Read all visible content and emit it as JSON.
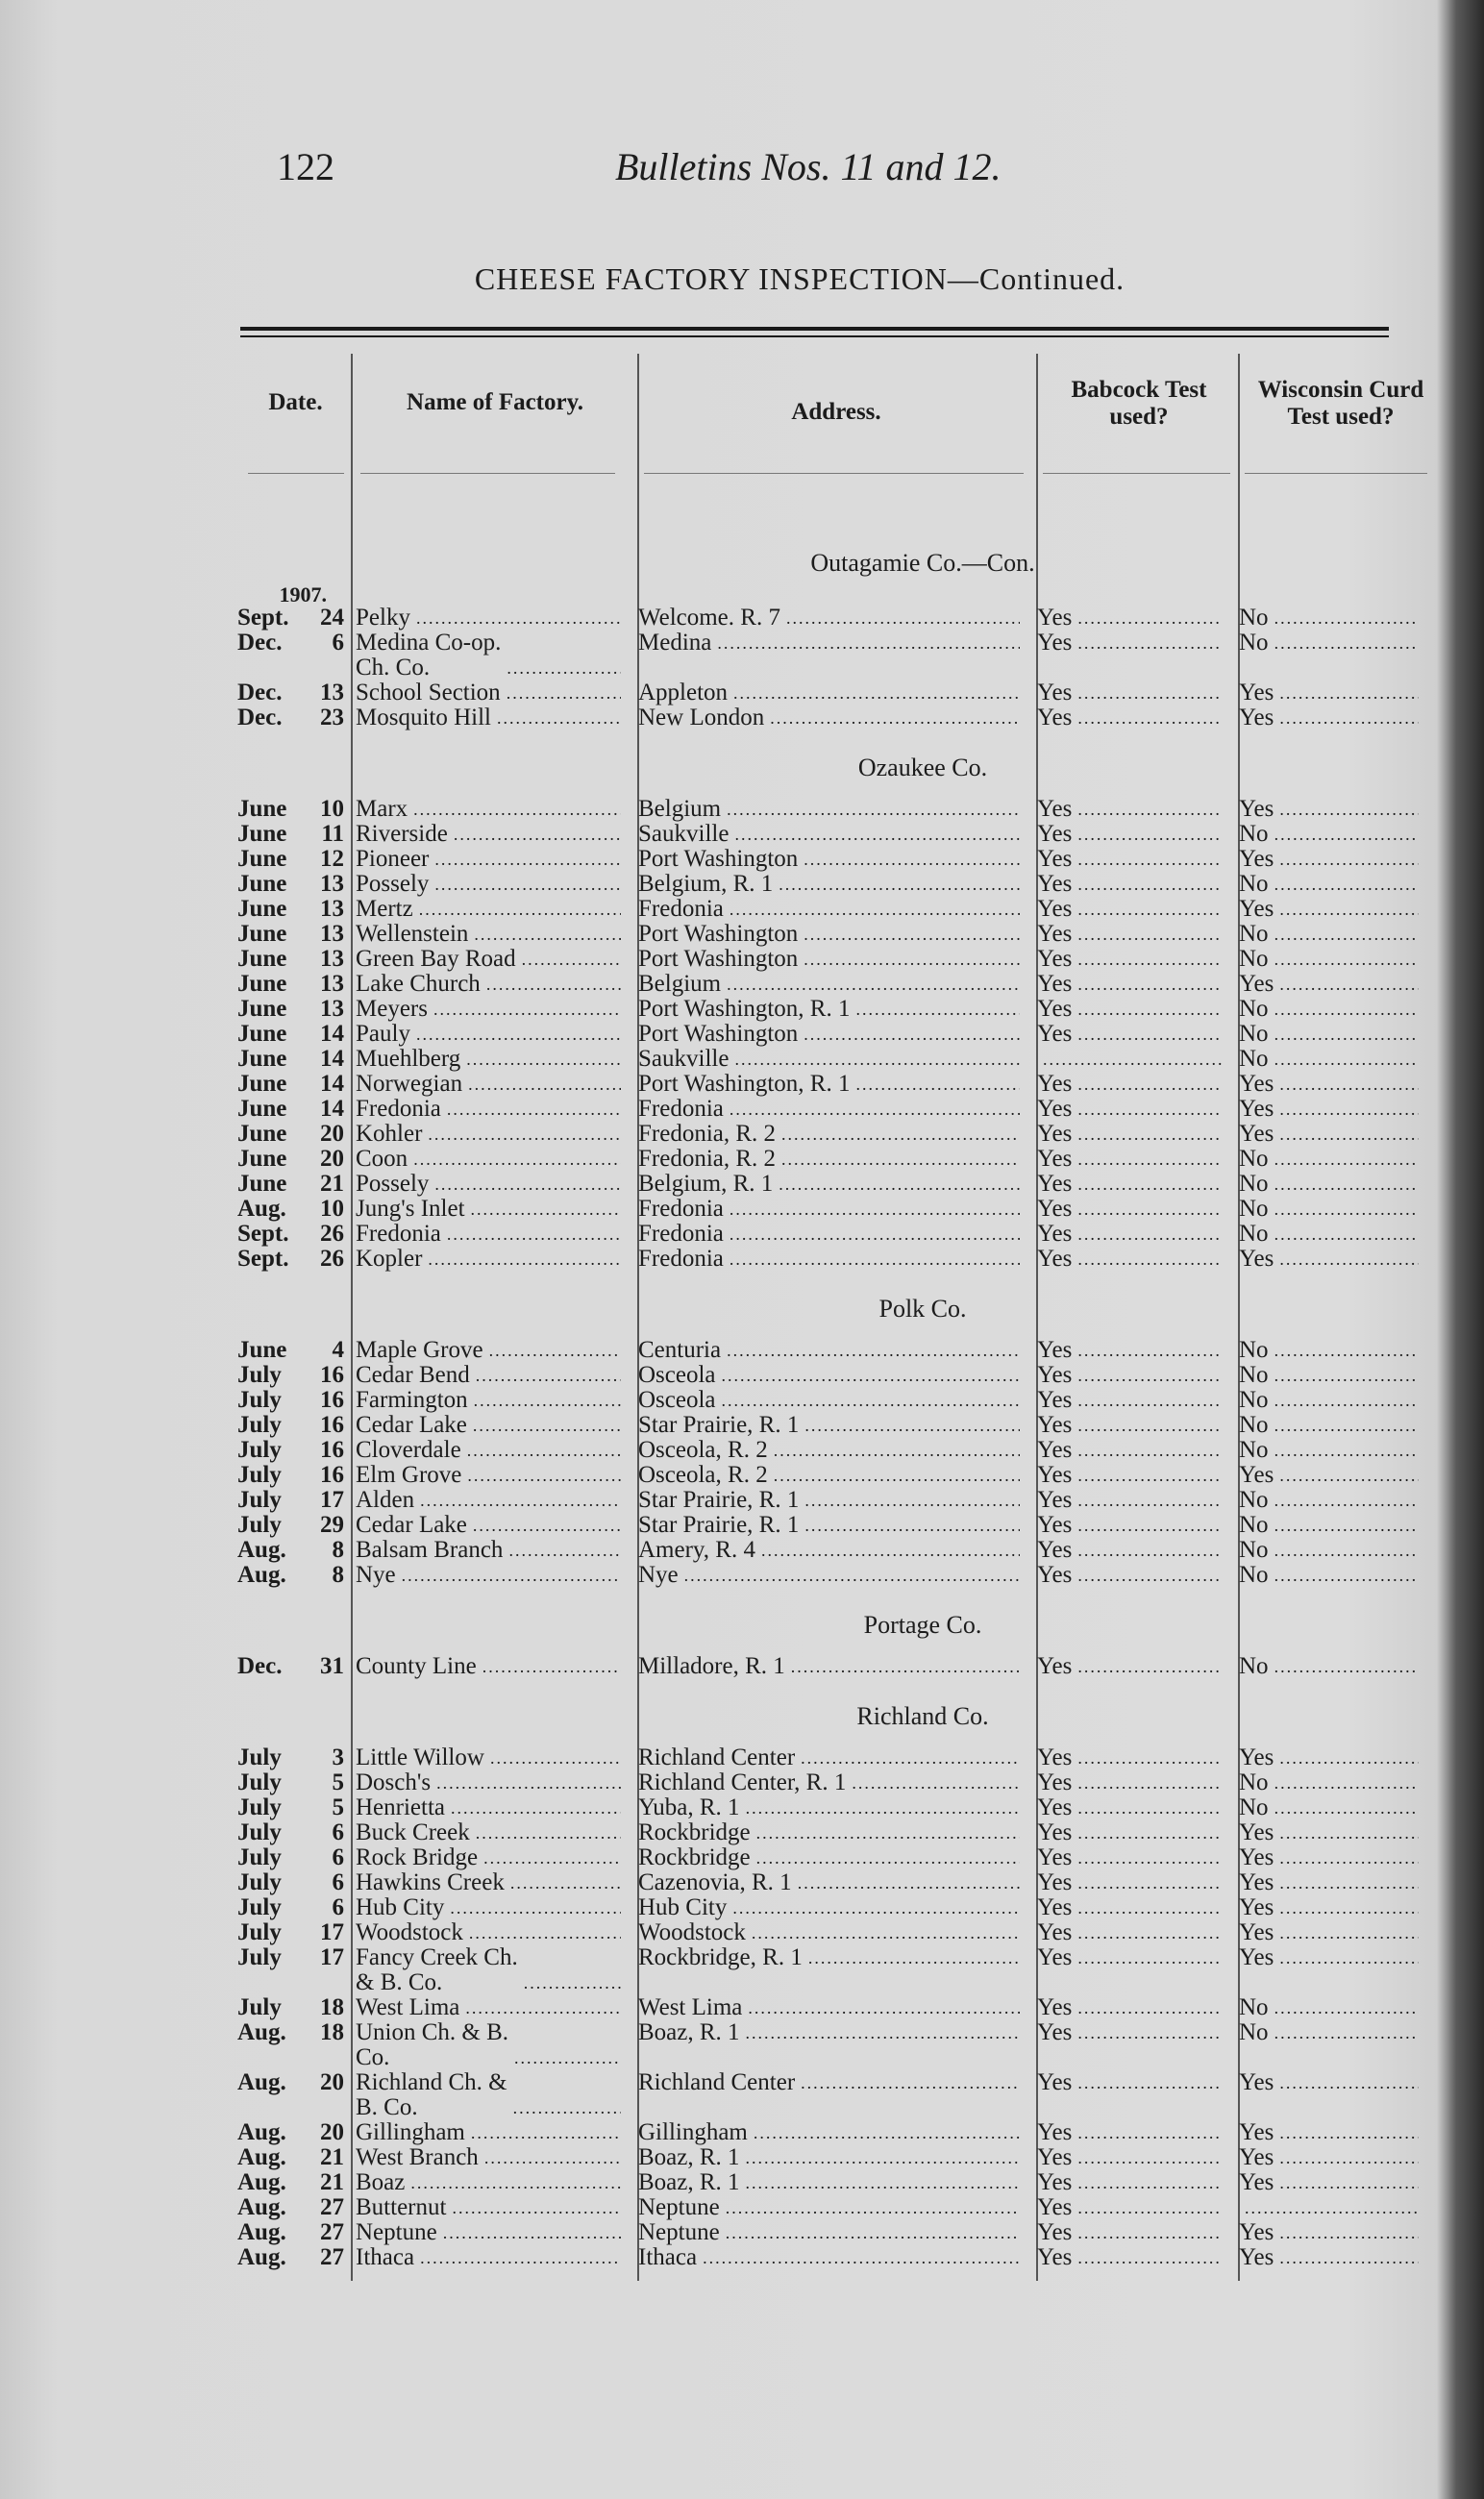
{
  "header": {
    "page_number": "122",
    "running_title": "Bulletins Nos. 11 and 12."
  },
  "table": {
    "title": "CHEESE FACTORY INSPECTION—Continued.",
    "columns": [
      "Date.",
      "Name of Factory.",
      "Address.",
      "Babcock Test used?",
      "Wisconsin Curd Test used?"
    ],
    "year": "1907.",
    "sections": [
      {
        "heading": "Outagamie Co.—Con.",
        "rows": [
          {
            "month": "Sept.",
            "day": "24",
            "name": "Pelky",
            "address": "Welcome. R. 7",
            "babcock": "Yes",
            "wisconsin": "No"
          },
          {
            "month": "Dec.",
            "day": "6",
            "name": "Medina Co-op.\n   Ch. Co.",
            "address": "Medina",
            "babcock": "Yes",
            "wisconsin": "No"
          },
          {
            "month": "Dec.",
            "day": "13",
            "name": "School Section",
            "address": "Appleton",
            "babcock": "Yes",
            "wisconsin": "Yes"
          },
          {
            "month": "Dec.",
            "day": "23",
            "name": "Mosquito Hill",
            "address": "New London",
            "babcock": "Yes",
            "wisconsin": "Yes"
          }
        ]
      },
      {
        "heading": "Ozaukee Co.",
        "rows": [
          {
            "month": "June",
            "day": "10",
            "name": "Marx",
            "address": "Belgium",
            "babcock": "Yes",
            "wisconsin": "Yes"
          },
          {
            "month": "June",
            "day": "11",
            "name": "Riverside",
            "address": "Saukville",
            "babcock": "Yes",
            "wisconsin": "No"
          },
          {
            "month": "June",
            "day": "12",
            "name": "Pioneer",
            "address": "Port Washington",
            "babcock": "Yes",
            "wisconsin": "Yes"
          },
          {
            "month": "June",
            "day": "13",
            "name": "Possely",
            "address": "Belgium, R. 1",
            "babcock": "Yes",
            "wisconsin": "No"
          },
          {
            "month": "June",
            "day": "13",
            "name": "Mertz",
            "address": "Fredonia",
            "babcock": "Yes",
            "wisconsin": "Yes"
          },
          {
            "month": "June",
            "day": "13",
            "name": "Wellenstein",
            "address": "Port Washington",
            "babcock": "Yes",
            "wisconsin": "No"
          },
          {
            "month": "June",
            "day": "13",
            "name": "Green Bay Road",
            "address": "Port Washington",
            "babcock": "Yes",
            "wisconsin": "No"
          },
          {
            "month": "June",
            "day": "13",
            "name": "Lake Church",
            "address": "Belgium",
            "babcock": "Yes",
            "wisconsin": "Yes"
          },
          {
            "month": "June",
            "day": "13",
            "name": "Meyers",
            "address": "Port Washington, R. 1",
            "babcock": "Yes",
            "wisconsin": "No"
          },
          {
            "month": "June",
            "day": "14",
            "name": "Pauly",
            "address": "Port Washington",
            "babcock": "Yes",
            "wisconsin": "No"
          },
          {
            "month": "June",
            "day": "14",
            "name": "Muehlberg",
            "address": "Saukville",
            "babcock": "",
            "wisconsin": "No"
          },
          {
            "month": "June",
            "day": "14",
            "name": "Norwegian",
            "address": "Port Washington, R. 1",
            "babcock": "Yes",
            "wisconsin": "Yes"
          },
          {
            "month": "June",
            "day": "14",
            "name": "Fredonia",
            "address": "Fredonia",
            "babcock": "Yes",
            "wisconsin": "Yes"
          },
          {
            "month": "June",
            "day": "20",
            "name": "Kohler",
            "address": "Fredonia, R. 2",
            "babcock": "Yes",
            "wisconsin": "Yes"
          },
          {
            "month": "June",
            "day": "20",
            "name": "Coon",
            "address": "Fredonia, R. 2",
            "babcock": "Yes",
            "wisconsin": "No"
          },
          {
            "month": "June",
            "day": "21",
            "name": "Possely",
            "address": "Belgium, R. 1",
            "babcock": "Yes",
            "wisconsin": "No"
          },
          {
            "month": "Aug.",
            "day": "10",
            "name": "Jung's Inlet",
            "address": "Fredonia",
            "babcock": "Yes",
            "wisconsin": "No"
          },
          {
            "month": "Sept.",
            "day": "26",
            "name": "Fredonia",
            "address": "Fredonia",
            "babcock": "Yes",
            "wisconsin": "No"
          },
          {
            "month": "Sept.",
            "day": "26",
            "name": "Kopler",
            "address": "Fredonia",
            "babcock": "Yes",
            "wisconsin": "Yes"
          }
        ]
      },
      {
        "heading": "Polk Co.",
        "rows": [
          {
            "month": "June",
            "day": "4",
            "name": "Maple Grove",
            "address": "Centuria",
            "babcock": "Yes",
            "wisconsin": "No"
          },
          {
            "month": "July",
            "day": "16",
            "name": "Cedar Bend",
            "address": "Osceola",
            "babcock": "Yes",
            "wisconsin": "No"
          },
          {
            "month": "July",
            "day": "16",
            "name": "Farmington",
            "address": "Osceola",
            "babcock": "Yes",
            "wisconsin": "No"
          },
          {
            "month": "July",
            "day": "16",
            "name": "Cedar Lake",
            "address": "Star Prairie, R. 1",
            "babcock": "Yes",
            "wisconsin": "No"
          },
          {
            "month": "July",
            "day": "16",
            "name": "Cloverdale",
            "address": "Osceola, R. 2",
            "babcock": "Yes",
            "wisconsin": "No"
          },
          {
            "month": "July",
            "day": "16",
            "name": "Elm Grove",
            "address": "Osceola, R. 2",
            "babcock": "Yes",
            "wisconsin": "Yes"
          },
          {
            "month": "July",
            "day": "17",
            "name": "Alden",
            "address": "Star Prairie, R. 1",
            "babcock": "Yes",
            "wisconsin": "No"
          },
          {
            "month": "July",
            "day": "29",
            "name": "Cedar Lake",
            "address": "Star Prairie, R. 1",
            "babcock": "Yes",
            "wisconsin": "No"
          },
          {
            "month": "Aug.",
            "day": "8",
            "name": "Balsam Branch",
            "address": "Amery, R. 4",
            "babcock": "Yes",
            "wisconsin": "No"
          },
          {
            "month": "Aug.",
            "day": "8",
            "name": "Nye",
            "address": "Nye",
            "babcock": "Yes",
            "wisconsin": "No"
          }
        ]
      },
      {
        "heading": "Portage Co.",
        "rows": [
          {
            "month": "Dec.",
            "day": "31",
            "name": "County Line",
            "address": "Milladore, R. 1",
            "babcock": "Yes",
            "wisconsin": "No"
          }
        ]
      },
      {
        "heading": "Richland Co.",
        "rows": [
          {
            "month": "July",
            "day": "3",
            "name": "Little Willow",
            "address": "Richland Center",
            "babcock": "Yes",
            "wisconsin": "Yes"
          },
          {
            "month": "July",
            "day": "5",
            "name": "Dosch's",
            "address": "Richland Center, R. 1",
            "babcock": "Yes",
            "wisconsin": "No"
          },
          {
            "month": "July",
            "day": "5",
            "name": "Henrietta",
            "address": "Yuba, R. 1",
            "babcock": "Yes",
            "wisconsin": "No"
          },
          {
            "month": "July",
            "day": "6",
            "name": "Buck Creek",
            "address": "Rockbridge",
            "babcock": "Yes",
            "wisconsin": "Yes"
          },
          {
            "month": "July",
            "day": "6",
            "name": "Rock Bridge",
            "address": "Rockbridge",
            "babcock": "Yes",
            "wisconsin": "Yes"
          },
          {
            "month": "July",
            "day": "6",
            "name": "Hawkins Creek",
            "address": "Cazenovia, R. 1",
            "babcock": "Yes",
            "wisconsin": "Yes"
          },
          {
            "month": "July",
            "day": "6",
            "name": "Hub City",
            "address": "Hub City",
            "babcock": "Yes",
            "wisconsin": "Yes"
          },
          {
            "month": "July",
            "day": "17",
            "name": "Woodstock",
            "address": "Woodstock",
            "babcock": "Yes",
            "wisconsin": "Yes"
          },
          {
            "month": "July",
            "day": "17",
            "name": "Fancy Creek Ch.\n   & B. Co.",
            "address": "Rockbridge, R. 1",
            "babcock": "Yes",
            "wisconsin": "Yes"
          },
          {
            "month": "July",
            "day": "18",
            "name": "West Lima",
            "address": "West Lima",
            "babcock": "Yes",
            "wisconsin": "No"
          },
          {
            "month": "Aug.",
            "day": "18",
            "name": "Union Ch. & B.\n   Co.",
            "address": "Boaz, R. 1",
            "babcock": "Yes",
            "wisconsin": "No"
          },
          {
            "month": "Aug.",
            "day": "20",
            "name": "Richland Ch. &\n   B. Co.",
            "address": "Richland Center",
            "babcock": "Yes",
            "wisconsin": "Yes"
          },
          {
            "month": "Aug.",
            "day": "20",
            "name": "Gillingham",
            "address": "Gillingham",
            "babcock": "Yes",
            "wisconsin": "Yes"
          },
          {
            "month": "Aug.",
            "day": "21",
            "name": "West Branch",
            "address": "Boaz, R. 1",
            "babcock": "Yes",
            "wisconsin": "Yes"
          },
          {
            "month": "Aug.",
            "day": "21",
            "name": "Boaz",
            "address": "Boaz, R. 1",
            "babcock": "Yes",
            "wisconsin": "Yes"
          },
          {
            "month": "Aug.",
            "day": "27",
            "name": "Butternut",
            "address": "Neptune",
            "babcock": "Yes",
            "wisconsin": ""
          },
          {
            "month": "Aug.",
            "day": "27",
            "name": "Neptune",
            "address": "Neptune",
            "babcock": "Yes",
            "wisconsin": "Yes"
          },
          {
            "month": "Aug.",
            "day": "27",
            "name": "Ithaca",
            "address": "Ithaca",
            "babcock": "Yes",
            "wisconsin": "Yes"
          }
        ]
      }
    ]
  }
}
